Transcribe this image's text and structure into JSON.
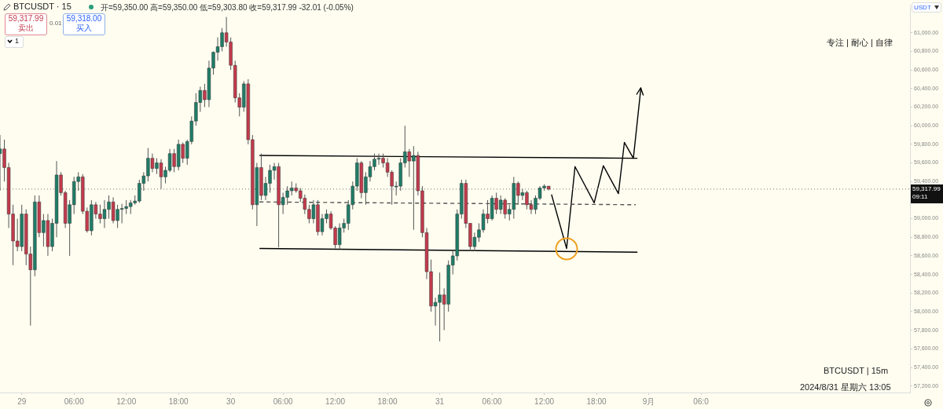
{
  "chart_data": {
    "type": "candlestick",
    "title": "BTCUSDT · 15",
    "subtitle": "开=59,350.00 高=59,350.00 低=59,303.80 收=59,317.99 -32.01 (-0.05%)",
    "x": [
      "2024-08-28T21:30",
      "2024-08-28T22:00",
      "2024-08-28T22:30",
      "2024-08-28T23:00",
      "2024-08-28T23:30",
      "2024-08-29T00:00",
      "2024-08-29T00:30",
      "2024-08-29T01:00",
      "2024-08-29T01:30",
      "2024-08-29T02:00",
      "2024-08-29T02:30",
      "2024-08-29T03:00",
      "2024-08-29T03:30",
      "2024-08-29T04:00",
      "2024-08-29T04:30",
      "2024-08-29T05:00",
      "2024-08-29T05:30",
      "2024-08-29T06:00",
      "2024-08-29T06:30",
      "2024-08-29T07:00",
      "2024-08-29T07:30",
      "2024-08-29T08:00",
      "2024-08-29T08:30",
      "2024-08-29T09:00",
      "2024-08-29T09:30",
      "2024-08-29T10:00",
      "2024-08-29T10:30",
      "2024-08-29T11:00",
      "2024-08-29T11:30",
      "2024-08-29T12:00",
      "2024-08-29T12:30",
      "2024-08-29T13:00",
      "2024-08-29T13:30",
      "2024-08-29T14:00",
      "2024-08-29T14:30",
      "2024-08-29T15:00",
      "2024-08-29T15:30",
      "2024-08-29T16:00",
      "2024-08-29T16:30",
      "2024-08-29T17:00",
      "2024-08-29T17:30",
      "2024-08-29T18:00",
      "2024-08-29T18:30",
      "2024-08-29T19:00",
      "2024-08-29T19:30",
      "2024-08-29T20:00",
      "2024-08-29T20:30",
      "2024-08-29T21:00",
      "2024-08-29T21:30",
      "2024-08-29T22:00",
      "2024-08-29T22:30",
      "2024-08-29T23:00",
      "2024-08-29T23:30",
      "2024-08-30T00:00",
      "2024-08-30T00:30",
      "2024-08-30T01:00",
      "2024-08-30T01:30",
      "2024-08-30T02:00",
      "2024-08-30T02:30",
      "2024-08-30T03:00",
      "2024-08-30T03:30",
      "2024-08-30T04:00",
      "2024-08-30T04:30",
      "2024-08-30T05:00",
      "2024-08-30T05:30",
      "2024-08-30T06:00",
      "2024-08-30T06:30",
      "2024-08-30T07:00",
      "2024-08-30T07:30",
      "2024-08-30T08:00",
      "2024-08-30T08:30",
      "2024-08-30T09:00",
      "2024-08-30T09:30",
      "2024-08-30T10:00",
      "2024-08-30T10:30",
      "2024-08-30T11:00",
      "2024-08-30T11:30",
      "2024-08-30T12:00",
      "2024-08-30T12:30",
      "2024-08-30T13:00",
      "2024-08-30T13:30",
      "2024-08-30T14:00",
      "2024-08-30T14:30",
      "2024-08-30T15:00",
      "2024-08-30T15:30",
      "2024-08-30T16:00",
      "2024-08-30T16:30",
      "2024-08-30T17:00",
      "2024-08-30T17:30",
      "2024-08-30T18:00",
      "2024-08-30T18:30",
      "2024-08-30T19:00",
      "2024-08-30T19:30",
      "2024-08-30T20:00",
      "2024-08-30T20:30",
      "2024-08-30T21:00",
      "2024-08-30T21:30",
      "2024-08-30T22:00",
      "2024-08-30T22:30",
      "2024-08-30T23:00",
      "2024-08-30T23:30",
      "2024-08-31T00:00",
      "2024-08-31T00:30",
      "2024-08-31T01:00",
      "2024-08-31T01:30",
      "2024-08-31T02:00",
      "2024-08-31T02:30",
      "2024-08-31T03:00",
      "2024-08-31T03:30",
      "2024-08-31T04:00",
      "2024-08-31T04:30",
      "2024-08-31T05:00",
      "2024-08-31T05:30",
      "2024-08-31T06:00",
      "2024-08-31T06:30",
      "2024-08-31T07:00",
      "2024-08-31T07:30",
      "2024-08-31T08:00",
      "2024-08-31T08:30",
      "2024-08-31T09:00",
      "2024-08-31T09:30",
      "2024-08-31T10:00",
      "2024-08-31T10:30",
      "2024-08-31T11:00",
      "2024-08-31T11:30",
      "2024-08-31T12:00",
      "2024-08-31T12:30"
    ],
    "ohlc": [
      [
        59700,
        59900,
        59300,
        59750
      ],
      [
        59750,
        59850,
        59400,
        59550
      ],
      [
        59550,
        59600,
        58900,
        59050
      ],
      [
        59050,
        59150,
        58500,
        58760
      ],
      [
        58760,
        59000,
        58650,
        58700
      ],
      [
        58700,
        59150,
        58650,
        59050
      ],
      [
        59050,
        59100,
        58500,
        58620
      ],
      [
        58620,
        58700,
        57850,
        58450
      ],
      [
        58450,
        59250,
        58380,
        59180
      ],
      [
        59180,
        59250,
        58800,
        58850
      ],
      [
        58850,
        59050,
        58700,
        58980
      ],
      [
        58980,
        59050,
        58600,
        58700
      ],
      [
        58700,
        59000,
        58650,
        58950
      ],
      [
        58950,
        59620,
        58800,
        59470
      ],
      [
        59470,
        59500,
        59250,
        59280
      ],
      [
        59280,
        59300,
        58900,
        58950
      ],
      [
        58950,
        59200,
        58600,
        59150
      ],
      [
        59150,
        59450,
        59050,
        59400
      ],
      [
        59400,
        59500,
        59300,
        59450
      ],
      [
        59450,
        59480,
        59050,
        59080
      ],
      [
        59080,
        59120,
        58850,
        58870
      ],
      [
        58870,
        59200,
        58820,
        59150
      ],
      [
        59150,
        59180,
        59000,
        59050
      ],
      [
        59050,
        59150,
        58950,
        59000
      ],
      [
        59000,
        59200,
        58900,
        59100
      ],
      [
        59100,
        59250,
        59000,
        59180
      ],
      [
        59180,
        59230,
        58950,
        58980
      ],
      [
        58980,
        59150,
        58900,
        59100
      ],
      [
        59100,
        59160,
        58950,
        59110
      ],
      [
        59110,
        59200,
        59050,
        59130
      ],
      [
        59130,
        59200,
        59050,
        59170
      ],
      [
        59170,
        59250,
        59150,
        59190
      ],
      [
        59190,
        59420,
        59170,
        59380
      ],
      [
        59380,
        59500,
        59300,
        59460
      ],
      [
        59460,
        59760,
        59400,
        59650
      ],
      [
        59650,
        59700,
        59500,
        59540
      ],
      [
        59540,
        59650,
        59480,
        59600
      ],
      [
        59600,
        59640,
        59320,
        59450
      ],
      [
        59450,
        59560,
        59380,
        59520
      ],
      [
        59520,
        59750,
        59500,
        59700
      ],
      [
        59700,
        59750,
        59500,
        59560
      ],
      [
        59560,
        59850,
        59520,
        59800
      ],
      [
        59800,
        59820,
        59600,
        59650
      ],
      [
        59650,
        59850,
        59580,
        59830
      ],
      [
        59830,
        60100,
        59800,
        60050
      ],
      [
        60050,
        60350,
        60000,
        60250
      ],
      [
        60250,
        60420,
        60150,
        60380
      ],
      [
        60380,
        60450,
        60200,
        60280
      ],
      [
        60280,
        60700,
        60200,
        60620
      ],
      [
        60620,
        60800,
        60550,
        60790
      ],
      [
        60790,
        60950,
        60700,
        60850
      ],
      [
        60850,
        61050,
        60800,
        61000
      ],
      [
        61000,
        61170,
        60850,
        60900
      ],
      [
        60900,
        60950,
        60600,
        60650
      ],
      [
        60650,
        60700,
        60250,
        60300
      ],
      [
        60300,
        60350,
        60100,
        60200
      ],
      [
        60200,
        60480,
        60150,
        60450
      ],
      [
        60450,
        60500,
        59800,
        59850
      ],
      [
        59850,
        59900,
        59100,
        59150
      ],
      [
        59150,
        59600,
        58920,
        59550
      ],
      [
        59550,
        59700,
        59200,
        59250
      ],
      [
        59250,
        59450,
        59200,
        59380
      ],
      [
        59380,
        59580,
        59280,
        59520
      ],
      [
        59520,
        59600,
        59420,
        59560
      ],
      [
        59560,
        59600,
        58690,
        59150
      ],
      [
        59150,
        59280,
        59050,
        59230
      ],
      [
        59230,
        59350,
        59150,
        59300
      ],
      [
        59300,
        59400,
        59250,
        59330
      ],
      [
        59330,
        59380,
        59280,
        59300
      ],
      [
        59300,
        59330,
        59180,
        59220
      ],
      [
        59220,
        59260,
        59050,
        59100
      ],
      [
        59100,
        59150,
        58950,
        59000
      ],
      [
        59000,
        59200,
        58950,
        59150
      ],
      [
        59150,
        59200,
        58820,
        58860
      ],
      [
        58860,
        59050,
        58820,
        59000
      ],
      [
        59000,
        59100,
        58950,
        59050
      ],
      [
        59050,
        59080,
        58880,
        58900
      ],
      [
        58900,
        58920,
        58680,
        58720
      ],
      [
        58720,
        58950,
        58670,
        58900
      ],
      [
        58900,
        59000,
        58850,
        58950
      ],
      [
        58950,
        59200,
        58880,
        59150
      ],
      [
        59150,
        59400,
        59100,
        59350
      ],
      [
        59350,
        59650,
        59300,
        59600
      ],
      [
        59600,
        59620,
        59220,
        59280
      ],
      [
        59280,
        59500,
        59150,
        59450
      ],
      [
        59450,
        59620,
        59400,
        59560
      ],
      [
        59560,
        59700,
        59520,
        59640
      ],
      [
        59640,
        59700,
        59580,
        59650
      ],
      [
        59650,
        59700,
        59550,
        59600
      ],
      [
        59600,
        59650,
        59450,
        59500
      ],
      [
        59500,
        59520,
        59150,
        59350
      ],
      [
        59350,
        59400,
        59250,
        59350
      ],
      [
        59350,
        59650,
        59300,
        59600
      ],
      [
        59600,
        60000,
        59550,
        59720
      ],
      [
        59720,
        59750,
        59450,
        59620
      ],
      [
        59620,
        59780,
        58880,
        59680
      ],
      [
        59680,
        59720,
        59250,
        59300
      ],
      [
        59300,
        59350,
        58800,
        58850
      ],
      [
        58850,
        58900,
        58350,
        58430
      ],
      [
        58430,
        58560,
        58000,
        58060
      ],
      [
        58060,
        58150,
        57850,
        58100
      ],
      [
        58100,
        58420,
        57680,
        58180
      ],
      [
        58180,
        58250,
        57800,
        58080
      ],
      [
        58080,
        58550,
        58000,
        58500
      ],
      [
        58500,
        58650,
        58400,
        58600
      ],
      [
        58600,
        59100,
        58550,
        59050
      ],
      [
        59050,
        59420,
        59000,
        59380
      ],
      [
        59380,
        59420,
        58900,
        58950
      ],
      [
        58950,
        58950,
        58650,
        58700
      ],
      [
        58700,
        58850,
        58650,
        58800
      ],
      [
        58800,
        58950,
        58750,
        58880
      ],
      [
        58880,
        59100,
        58850,
        59050
      ],
      [
        59050,
        59200,
        58950,
        59000
      ],
      [
        59000,
        59250,
        58980,
        59220
      ],
      [
        59220,
        59280,
        59050,
        59100
      ],
      [
        59100,
        59250,
        59050,
        59200
      ],
      [
        59200,
        59220,
        59000,
        59050
      ],
      [
        59050,
        59150,
        58980,
        59100
      ],
      [
        59100,
        59450,
        59000,
        59380
      ],
      [
        59380,
        59400,
        59150,
        59250
      ],
      [
        59250,
        59320,
        59200,
        59280
      ],
      [
        59280,
        59300,
        59100,
        59150
      ],
      [
        59150,
        59200,
        59050,
        59100
      ],
      [
        59100,
        59250,
        59050,
        59220
      ],
      [
        59220,
        59350,
        59200,
        59330
      ],
      [
        59330,
        59370,
        59300,
        59350
      ],
      [
        59350,
        59350,
        59303.8,
        59317.99
      ]
    ],
    "series": [
      {
        "type": "line",
        "x": [
          "2024-08-30T03:18",
          "2024-08-31T22:42"
        ],
        "values": [
          59680,
          59650
        ],
        "color": "#000000"
      },
      {
        "type": "line",
        "x": [
          "2024-08-30T03:18",
          "2024-08-31T22:42"
        ],
        "values": [
          58680,
          58640
        ],
        "color": "#000000"
      },
      {
        "type": "line",
        "x": [
          "2024-08-30T03:18",
          "2024-08-31T22:30"
        ],
        "values": [
          59180,
          59150
        ],
        "color": "#555555",
        "line_style": "dashed"
      },
      {
        "type": "line",
        "x": [
          "2024-08-31T12:50",
          "2024-08-31T14:34",
          "2024-08-31T15:32",
          "2024-08-31T17:44",
          "2024-08-31T18:47",
          "2024-08-31T20:31",
          "2024-08-31T21:12",
          "2024-08-31T22:14",
          "2024-08-31T23:06"
        ],
        "values": [
          59260,
          58680,
          59560,
          59170,
          59570,
          59270,
          59820,
          59650,
          60410
        ],
        "color": "#000000"
      }
    ],
    "xlim": [
      "2024-08-28T21:30",
      "2024-09-02T06:00"
    ],
    "ylim": [
      57130,
      61300
    ],
    "xticks": [
      {
        "value": "2024-08-29T00:00",
        "label": "29"
      },
      {
        "value": "2024-08-29T06:00",
        "label": "06:00"
      },
      {
        "value": "2024-08-29T12:00",
        "label": "12:00"
      },
      {
        "value": "2024-08-29T18:00",
        "label": "18:00"
      },
      {
        "value": "2024-08-30T00:00",
        "label": "30"
      },
      {
        "value": "2024-08-30T06:00",
        "label": "06:00"
      },
      {
        "value": "2024-08-30T12:00",
        "label": "12:00"
      },
      {
        "value": "2024-08-30T18:00",
        "label": "18:00"
      },
      {
        "value": "2024-08-31T00:00",
        "label": "31"
      },
      {
        "value": "2024-08-31T06:00",
        "label": "06:00"
      },
      {
        "value": "2024-08-31T12:00",
        "label": "12:00"
      },
      {
        "value": "2024-08-31T18:00",
        "label": "18:00"
      },
      {
        "value": "2024-09-01T00:00",
        "label": "9月"
      },
      {
        "value": "2024-09-01T06:00",
        "label": "06:0"
      }
    ],
    "yticks": [
      {
        "value": 57200,
        "label": "57,200.00"
      },
      {
        "value": 57400,
        "label": "57,400.00"
      },
      {
        "value": 57600,
        "label": "57,600.00"
      },
      {
        "value": 57800,
        "label": "57,800.00"
      },
      {
        "value": 58000,
        "label": "58,000.00"
      },
      {
        "value": 58200,
        "label": "58,200.00"
      },
      {
        "value": 58400,
        "label": "58,400.00"
      },
      {
        "value": 58600,
        "label": "58,600.00"
      },
      {
        "value": 58800,
        "label": "58,800.00"
      },
      {
        "value": 59000,
        "label": "59,000.00"
      },
      {
        "value": 59200,
        "label": null
      },
      {
        "value": 59400,
        "label": "59,400.00"
      },
      {
        "value": 59600,
        "label": "59,600.00"
      },
      {
        "value": 59800,
        "label": "59,800.00"
      },
      {
        "value": 60000,
        "label": "60,000.00"
      },
      {
        "value": 60200,
        "label": "60,200.00"
      },
      {
        "value": 60400,
        "label": "60,400.00"
      },
      {
        "value": 60600,
        "label": "60,600.00"
      },
      {
        "value": 60800,
        "label": "60,800.00"
      },
      {
        "value": 61000,
        "label": "61,000.00"
      }
    ],
    "grid": false,
    "legend": false,
    "ref_lines": [
      {
        "axis": "y",
        "value": 59317.99,
        "label": "59,317.99\n09:11",
        "color": "#777777",
        "line_style": "dotted"
      }
    ],
    "annotations": [
      "59,317.99",
      "卖出",
      "0.01",
      "59,318.00",
      "买入",
      "1",
      "专注 | 耐心 | 自律",
      "BTCUSDT | 15m",
      "2024/8/31 星期六 13:05",
      "USDT"
    ]
  }
}
